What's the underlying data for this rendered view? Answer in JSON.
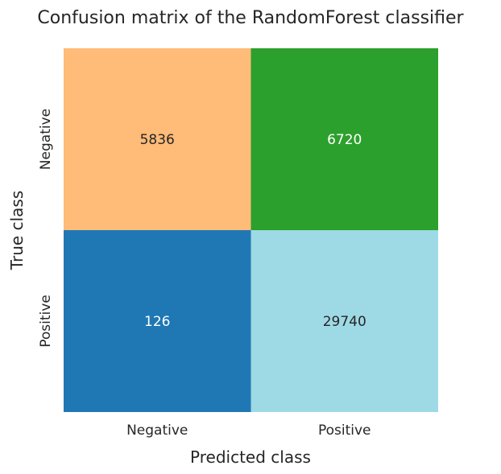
{
  "chart_data": {
    "type": "heatmap",
    "title": "Confusion matrix of the RandomForest classifier",
    "xlabel": "Predicted class",
    "ylabel": "True class",
    "x_categories": [
      "Negative",
      "Positive"
    ],
    "y_categories": [
      "Negative",
      "Positive"
    ],
    "values": [
      [
        5836,
        6720
      ],
      [
        126,
        29740
      ]
    ],
    "cell_colors": [
      [
        "#ffbb78",
        "#2ca02c"
      ],
      [
        "#1f77b4",
        "#9edae5"
      ]
    ],
    "text_colors": [
      [
        "#262626",
        "#ffffff"
      ],
      [
        "#ffffff",
        "#262626"
      ]
    ],
    "colorbar": false,
    "grid": false
  }
}
